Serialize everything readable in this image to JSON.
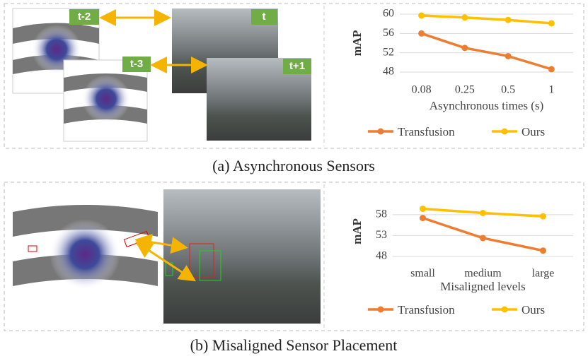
{
  "chart_data": [
    {
      "type": "line",
      "ylabel": "mAP",
      "xlabel": "Asynchronous times (s)",
      "categories": [
        "0.08",
        "0.25",
        "0.5",
        "1"
      ],
      "series": [
        {
          "name": "Transfusion",
          "color": "#ed7d31",
          "values": [
            56,
            53,
            51.3,
            48.6
          ]
        },
        {
          "name": "Ours",
          "color": "#ffc000",
          "values": [
            59.7,
            59.3,
            58.8,
            58.1
          ]
        }
      ],
      "ylim": [
        48,
        60
      ],
      "yticks": [
        48,
        52,
        56,
        60
      ],
      "grid": true,
      "legend": "bottom"
    },
    {
      "type": "line",
      "ylabel": "mAP",
      "xlabel": "Misaligned levels",
      "categories": [
        "small",
        "medium",
        "large"
      ],
      "series": [
        {
          "name": "Transfusion",
          "color": "#ed7d31",
          "values": [
            57.2,
            52.4,
            49.4
          ]
        },
        {
          "name": "Ours",
          "color": "#ffc000",
          "values": [
            59.4,
            58.4,
            57.6
          ]
        }
      ],
      "ylim": [
        48,
        60
      ],
      "yticks": [
        48,
        53,
        58
      ],
      "grid": true,
      "legend": "bottom"
    }
  ],
  "captions": [
    "(a) Asynchronous Sensors",
    "(b) Misaligned Sensor Placement"
  ],
  "frame_labels": [
    "t-2",
    "t",
    "t-3",
    "t+1"
  ]
}
